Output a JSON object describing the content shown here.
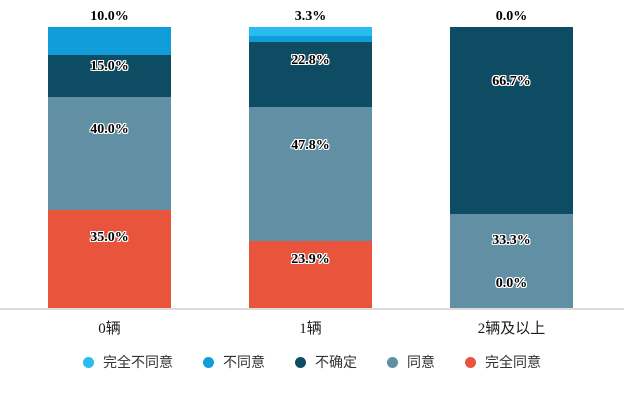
{
  "chart_data": {
    "type": "bar",
    "stacked": true,
    "orientation": "vertical",
    "unit": "%",
    "title": "",
    "xlabel": "",
    "ylabel": "",
    "ylim": [
      0,
      100
    ],
    "y_axis_visible": false,
    "grid": false,
    "legend_position": "bottom",
    "background_color": "#ffffff",
    "axis_line_color": "#dcdcdc",
    "value_label_color": "#000000",
    "value_label_outline_color": "#ffffff",
    "categories": [
      "0辆",
      "1辆",
      "2辆及以上"
    ],
    "series": [
      {
        "name": "完全不同意",
        "color": "#29bdef",
        "values": [
          0.0,
          3.3,
          0.0
        ]
      },
      {
        "name": "不同意",
        "color": "#109dd9",
        "values": [
          10.0,
          2.2,
          0.0
        ]
      },
      {
        "name": "不确定",
        "color": "#0e4c64",
        "values": [
          15.0,
          22.8,
          66.7
        ]
      },
      {
        "name": "同意",
        "color": "#6190a4",
        "values": [
          40.0,
          47.8,
          33.3
        ]
      },
      {
        "name": "完全同意",
        "color": "#e9543d",
        "values": [
          35.0,
          23.9,
          0.0
        ]
      }
    ],
    "bar_labels": [
      [
        {
          "text": "10.0%",
          "pos": "above"
        },
        {
          "text": "15.0%",
          "series": "不确定"
        },
        {
          "text": "40.0%",
          "series": "同意"
        },
        {
          "text": "35.0%",
          "series": "完全同意"
        }
      ],
      [
        {
          "text": "3.3%",
          "pos": "above"
        },
        {
          "text": "22.8%",
          "series": "不确定"
        },
        {
          "text": "47.8%",
          "series": "同意"
        },
        {
          "text": "23.9%",
          "series": "完全同意"
        }
      ],
      [
        {
          "text": "0.0%",
          "pos": "above"
        },
        {
          "text": "66.7%",
          "series": "不确定"
        },
        {
          "text": "33.3%",
          "series": "同意"
        },
        {
          "text": "0.0%",
          "pos": "bottom"
        }
      ]
    ]
  }
}
